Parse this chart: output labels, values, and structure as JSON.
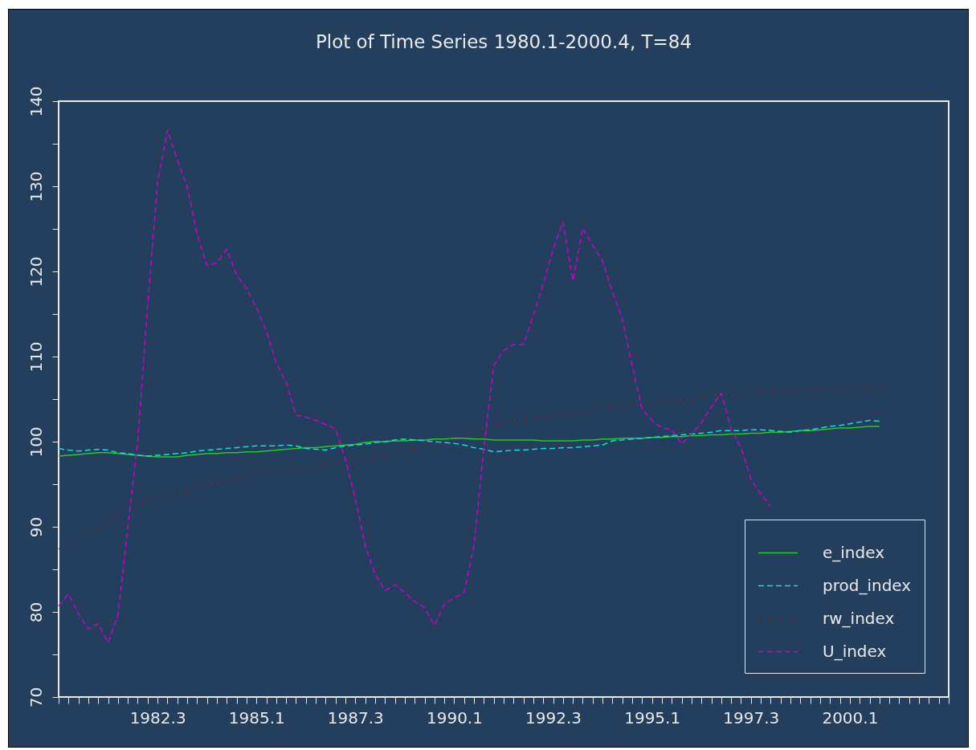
{
  "chart_data": {
    "type": "line",
    "title": "Plot of Time Series 1980.1-2000.4, T=84",
    "categories": [
      null,
      null,
      null,
      null,
      null,
      null,
      null,
      null,
      null,
      null,
      "1982.3",
      null,
      null,
      null,
      null,
      null,
      null,
      null,
      null,
      null,
      "1985.1",
      null,
      null,
      null,
      null,
      null,
      null,
      null,
      null,
      null,
      "1987.3",
      null,
      null,
      null,
      null,
      null,
      null,
      null,
      null,
      null,
      "1990.1",
      null,
      null,
      null,
      null,
      null,
      null,
      null,
      null,
      null,
      "1992.3",
      null,
      null,
      null,
      null,
      null,
      null,
      null,
      null,
      null,
      "1995.1",
      null,
      null,
      null,
      null,
      null,
      null,
      null,
      null,
      null,
      "1997.3",
      null,
      null,
      null,
      null,
      null,
      null,
      null,
      null,
      null,
      "2000.1",
      null,
      null,
      null,
      null,
      null,
      null,
      null,
      null,
      null,
      null
    ],
    "ylim": [
      70,
      140
    ],
    "yticks": [
      70,
      {
        "value": 75,
        "label": null
      },
      80,
      {
        "value": 85,
        "label": null
      },
      90,
      {
        "value": 95,
        "label": null
      },
      100,
      {
        "value": 105,
        "label": null
      },
      110,
      {
        "value": 115,
        "label": null
      },
      120,
      {
        "value": 125,
        "label": null
      },
      130,
      {
        "value": 135,
        "label": null
      },
      140
    ],
    "legend": "bottom right",
    "series": [
      {
        "name": "e_index",
        "color": "#22cc22",
        "line_style": "solid",
        "values": [
          98.3,
          98.4,
          98.5,
          98.6,
          98.7,
          98.7,
          98.6,
          98.5,
          98.4,
          98.3,
          98.2,
          98.2,
          98.2,
          98.4,
          98.5,
          98.6,
          98.6,
          98.7,
          98.7,
          98.8,
          98.8,
          98.9,
          99.0,
          99.1,
          99.2,
          99.3,
          99.3,
          99.4,
          99.5,
          99.6,
          99.7,
          99.9,
          100.0,
          100.0,
          100.1,
          100.1,
          100.2,
          100.2,
          100.3,
          100.3,
          100.4,
          100.4,
          100.3,
          100.3,
          100.2,
          100.2,
          100.2,
          100.2,
          100.2,
          100.1,
          100.1,
          100.1,
          100.1,
          100.2,
          100.2,
          100.3,
          100.3,
          100.4,
          100.4,
          100.4,
          100.5,
          100.5,
          100.6,
          100.6,
          100.7,
          100.7,
          100.8,
          100.8,
          100.9,
          100.9,
          101.0,
          101.0,
          101.1,
          101.1,
          101.2,
          101.3,
          101.3,
          101.4,
          101.5,
          101.6,
          101.6,
          101.7,
          101.8,
          101.8,
          null,
          null,
          null,
          null,
          null,
          null,
          null
        ]
      },
      {
        "name": "prod_index",
        "color": "#11dddd",
        "line_style": "dashed",
        "values": [
          99.2,
          99.0,
          98.9,
          99.0,
          99.1,
          99.0,
          98.7,
          98.6,
          98.4,
          98.3,
          98.4,
          98.5,
          98.6,
          98.7,
          98.9,
          99.0,
          99.1,
          99.2,
          99.3,
          99.4,
          99.5,
          99.5,
          99.5,
          99.6,
          99.5,
          99.2,
          99.1,
          99.0,
          99.3,
          99.5,
          99.6,
          99.7,
          99.9,
          100.0,
          100.2,
          100.3,
          100.2,
          100.1,
          100.0,
          99.9,
          99.8,
          99.6,
          99.3,
          99.1,
          98.8,
          98.9,
          99.0,
          99.0,
          99.1,
          99.2,
          99.2,
          99.3,
          99.3,
          99.4,
          99.5,
          99.6,
          100.1,
          100.2,
          100.3,
          100.4,
          100.5,
          100.6,
          100.7,
          100.8,
          100.9,
          101.0,
          101.1,
          101.3,
          101.3,
          101.3,
          101.4,
          101.4,
          101.3,
          101.2,
          101.1,
          101.3,
          101.4,
          101.6,
          101.8,
          101.9,
          102.1,
          102.3,
          102.5,
          102.4,
          null,
          null,
          null,
          null,
          null,
          null,
          null
        ]
      },
      {
        "name": "rw_index",
        "color": "#cc1111",
        "line_style": "dotted",
        "values": [
          87.4,
          88.1,
          88.7,
          89.4,
          90.0,
          90.8,
          91.5,
          92.3,
          92.9,
          93.2,
          93.5,
          93.8,
          94.1,
          94.4,
          94.6,
          94.9,
          95.2,
          95.5,
          95.7,
          96.0,
          96.2,
          96.3,
          96.5,
          96.6,
          96.8,
          96.9,
          97.1,
          97.3,
          97.5,
          97.7,
          97.8,
          98.0,
          98.2,
          98.5,
          98.8,
          99.0,
          99.3,
          99.5,
          99.8,
          100.2,
          100.5,
          100.8,
          101.2,
          101.5,
          101.9,
          102.2,
          102.4,
          102.5,
          102.7,
          102.9,
          103.0,
          103.2,
          103.4,
          103.5,
          103.7,
          103.9,
          104.0,
          104.1,
          104.3,
          104.4,
          104.5,
          104.7,
          104.8,
          105.0,
          105.1,
          105.2,
          105.4,
          105.5,
          105.5,
          105.6,
          105.7,
          105.8,
          105.8,
          105.9,
          106.0,
          106.1,
          106.1,
          106.2,
          106.3,
          106.4,
          106.4,
          106.5,
          106.6,
          106.6,
          null,
          null,
          null,
          null,
          null,
          null,
          null
        ]
      },
      {
        "name": "U_index",
        "color": "#cc00cc",
        "line_style": "dashed",
        "values": [
          80.7,
          82.1,
          79.8,
          78.0,
          78.6,
          76.4,
          79.6,
          90,
          100,
          116,
          130.4,
          136.6,
          133.1,
          129.9,
          124.4,
          120.7,
          121.0,
          122.6,
          119.6,
          118.0,
          115.7,
          113.0,
          109.3,
          107.0,
          103.1,
          102.9,
          102.5,
          102.0,
          101.5,
          97.9,
          93.3,
          87.8,
          84.4,
          82.5,
          83.2,
          82.3,
          81.2,
          80.5,
          78.4,
          80.9,
          81.6,
          82.3,
          87.8,
          99.3,
          108.9,
          110.7,
          111.4,
          111.4,
          114.8,
          118.5,
          122.6,
          125.8,
          118.9,
          125.1,
          123.1,
          121.2,
          117.6,
          114.4,
          108.9,
          103.8,
          102.5,
          101.6,
          101.4,
          99.7,
          100.9,
          102.2,
          104.1,
          105.7,
          101.5,
          99.3,
          95.6,
          93.8,
          92.4,
          null,
          null,
          null,
          null,
          null,
          null,
          null,
          null,
          null,
          null,
          null,
          null,
          null,
          null,
          null,
          null,
          null,
          null
        ]
      }
    ]
  }
}
